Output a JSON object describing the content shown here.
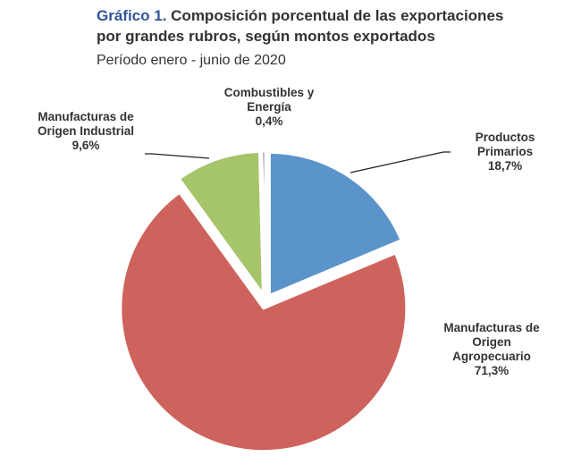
{
  "header": {
    "title_prefix": "Gráfico 1.",
    "title_line1": "Composición porcentual de las exportaciones",
    "title_line2": "por grandes rubros, según montos exportados",
    "subtitle": "Período enero - junio de 2020"
  },
  "chart_data": {
    "type": "pie",
    "start_angle_deg": 0,
    "direction": "clockwise",
    "slices": [
      {
        "label_lines": [
          "Productos",
          "Primarios"
        ],
        "value_label": "18,7%",
        "value": 18.7,
        "color": "#5b93cb",
        "exploded": true
      },
      {
        "label_lines": [
          "Manufacturas de",
          "Origen",
          "Agropecuario"
        ],
        "value_label": "71,3%",
        "value": 71.3,
        "color": "#cd635c",
        "exploded": true
      },
      {
        "label_lines": [
          "Manufacturas de",
          "Origen Industrial"
        ],
        "value_label": "9,6%",
        "value": 9.6,
        "color": "#a6c56a",
        "exploded": true
      },
      {
        "label_lines": [
          "Combustibles y",
          "Energía"
        ],
        "value_label": "0,4%",
        "value": 0.4,
        "color": "#7e69a2",
        "exploded": true
      }
    ]
  }
}
